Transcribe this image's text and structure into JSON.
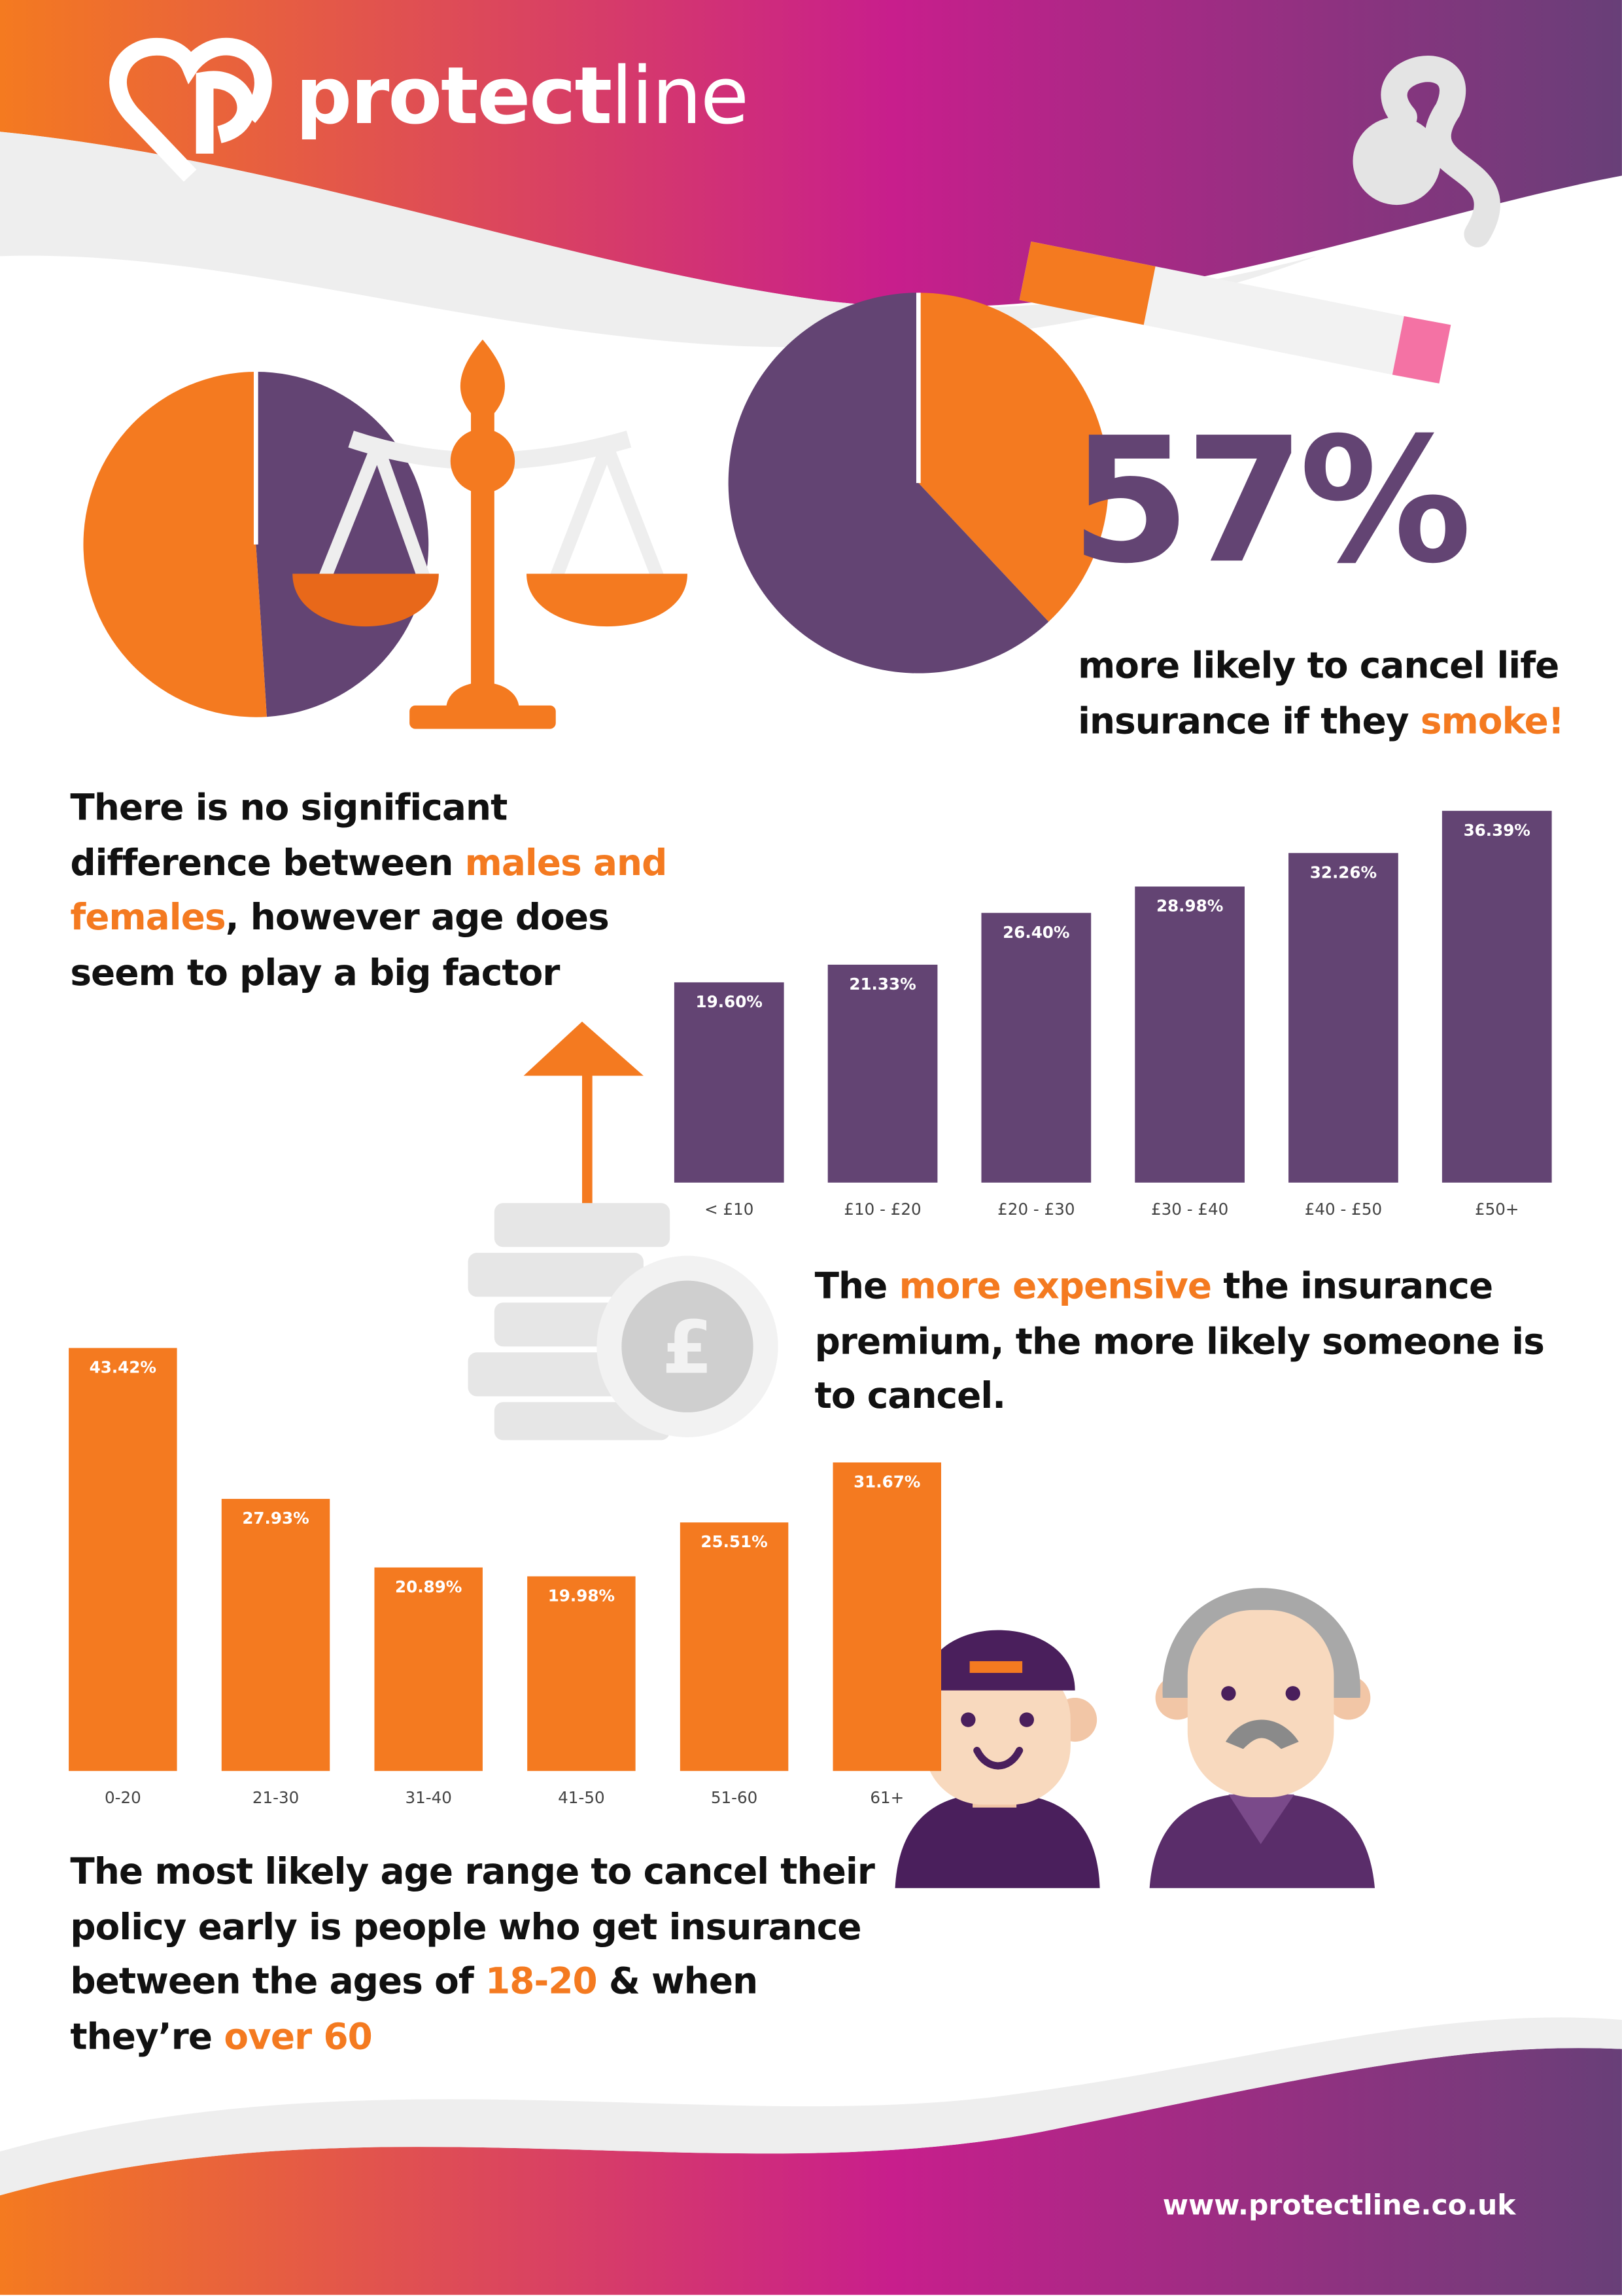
{
  "logo": {
    "bold": "protect",
    "light": "line"
  },
  "chart_data": [
    {
      "type": "pie",
      "values": [
        49,
        51
      ],
      "colors": [
        "#634473",
        "#f47a20"
      ]
    },
    {
      "type": "pie",
      "values": [
        38,
        62
      ],
      "colors": [
        "#f47a20",
        "#634473"
      ]
    },
    {
      "type": "bar",
      "categories": [
        "< £10",
        "£10 - £20",
        "£20 - £30",
        "£30 - £40",
        "£40 - £50",
        "£50+"
      ],
      "values": [
        19.6,
        21.33,
        26.4,
        28.98,
        32.26,
        36.39
      ],
      "value_labels": [
        "19.60%",
        "21.33%",
        "26.40%",
        "28.98%",
        "32.26%",
        "36.39%"
      ],
      "color": "#634473"
    },
    {
      "type": "bar",
      "categories": [
        "0-20",
        "21-30",
        "31-40",
        "41-50",
        "51-60",
        "61+"
      ],
      "values": [
        43.42,
        27.93,
        20.89,
        19.98,
        25.51,
        31.67
      ],
      "value_labels": [
        "43.42%",
        "27.93%",
        "20.89%",
        "19.98%",
        "25.51%",
        "31.67%"
      ],
      "color": "#f47a20"
    }
  ],
  "smoke_stat": "57%",
  "smoke_text": [
    "more likely to cancel life insurance if they ",
    "smoke!"
  ],
  "gender_note": [
    "There is no significant difference between ",
    "males and females",
    ", however age does seem to play a big factor"
  ],
  "premium_note": [
    "The ",
    "more expensive",
    " the insurance premium, the more likely someone is to cancel."
  ],
  "age_note": [
    "The most likely age range to cancel their policy early is people who get insurance between the ages of ",
    "18-20",
    " & when they’re ",
    "over 60"
  ],
  "url": "www.protectline.co.uk"
}
